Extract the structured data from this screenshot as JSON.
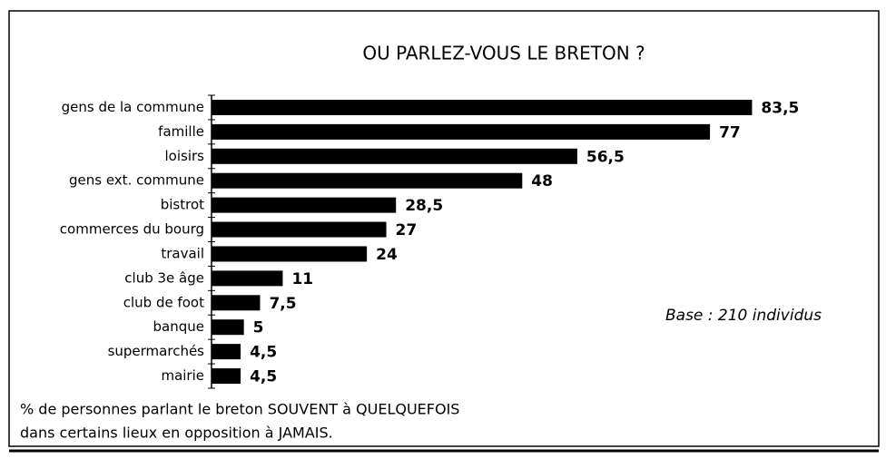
{
  "chart_data": {
    "type": "bar",
    "orientation": "horizontal",
    "title": "OU PARLEZ-VOUS LE BRETON ?",
    "categories": [
      "gens de la commune",
      "famille",
      "loisirs",
      "gens ext. commune",
      "bistrot",
      "commerces du bourg",
      "travail",
      "club 3e âge",
      "club de foot",
      "banque",
      "supermarchés",
      "mairie"
    ],
    "values": [
      83.5,
      77,
      56.5,
      48,
      28.5,
      27,
      24,
      11,
      7.5,
      5,
      4.5,
      4.5
    ],
    "value_labels": [
      "83,5",
      "77",
      "56,5",
      "48",
      "28,5",
      "27",
      "24",
      "11",
      "7,5",
      "5",
      "4,5",
      "4,5"
    ],
    "color": "#000000",
    "xlim": [
      0,
      84
    ],
    "annotation": "Base : 210 individus",
    "footnote": [
      "% de personnes parlant le breton SOUVENT à QUELQUEFOIS",
      "dans certains lieux en opposition à JAMAIS."
    ]
  }
}
